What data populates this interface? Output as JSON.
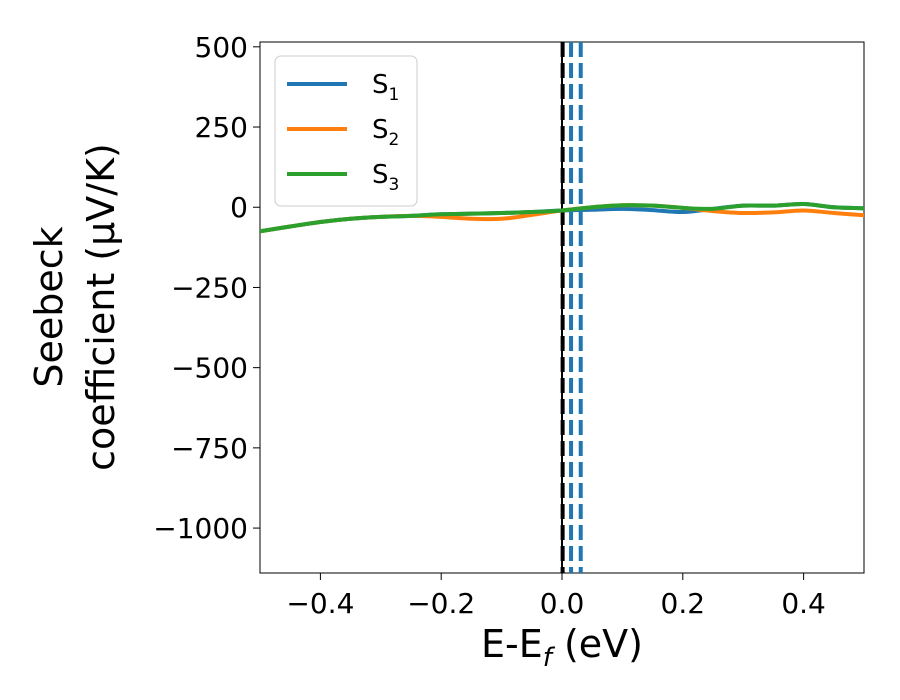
{
  "chart_data": {
    "type": "line",
    "xlabel": {
      "main": "E-E",
      "sub": "f",
      "tail": " (eV)"
    },
    "ylabel": {
      "line1": "Seebeck",
      "line2": "coefficient  (μV/K)"
    },
    "xlim": [
      -0.5,
      0.5
    ],
    "ylim": [
      -1140,
      515
    ],
    "xticks": [
      -0.4,
      -0.2,
      0.0,
      0.2,
      0.4
    ],
    "xtick_labels": [
      "−0.4",
      "−0.2",
      "0.0",
      "0.2",
      "0.4"
    ],
    "yticks": [
      500,
      250,
      0,
      -250,
      -500,
      -750,
      -1000
    ],
    "ytick_labels": [
      "500",
      "250",
      "0",
      "−250",
      "−500",
      "−750",
      "−1000"
    ],
    "grid": false,
    "legend_position": "top-left",
    "series": [
      {
        "name": "S",
        "sub": "1",
        "color": "#1f77b4",
        "x": [
          -0.5,
          -0.45,
          -0.4,
          -0.35,
          -0.3,
          -0.25,
          -0.2,
          -0.15,
          -0.1,
          -0.05,
          0.0,
          0.05,
          0.1,
          0.15,
          0.2,
          0.25,
          0.3,
          0.35,
          0.4,
          0.45,
          0.5
        ],
        "y": [
          -75,
          -60,
          -46,
          -36,
          -30,
          -27,
          -22,
          -20,
          -18,
          -15,
          -10,
          -8,
          -5,
          -9,
          -15,
          -5,
          5,
          5,
          10,
          0,
          -3
        ]
      },
      {
        "name": "S",
        "sub": "2",
        "color": "#ff7f0e",
        "x": [
          -0.5,
          -0.45,
          -0.4,
          -0.35,
          -0.3,
          -0.25,
          -0.2,
          -0.15,
          -0.1,
          -0.05,
          0.0,
          0.05,
          0.1,
          0.15,
          0.2,
          0.25,
          0.3,
          0.35,
          0.4,
          0.45,
          0.5
        ],
        "y": [
          -75,
          -60,
          -46,
          -36,
          -30,
          -27,
          -30,
          -36,
          -36,
          -24,
          -10,
          0,
          6,
          5,
          -2,
          -12,
          -18,
          -16,
          -10,
          -18,
          -25
        ]
      },
      {
        "name": "S",
        "sub": "3",
        "color": "#2ca02c",
        "x": [
          -0.5,
          -0.45,
          -0.4,
          -0.35,
          -0.3,
          -0.25,
          -0.2,
          -0.15,
          -0.1,
          -0.05,
          0.0,
          0.05,
          0.1,
          0.15,
          0.2,
          0.25,
          0.3,
          0.35,
          0.4,
          0.45,
          0.5
        ],
        "y": [
          -75,
          -60,
          -46,
          -36,
          -30,
          -27,
          -22,
          -20,
          -18,
          -15,
          -10,
          0,
          6,
          5,
          -2,
          -5,
          5,
          5,
          10,
          0,
          -3
        ]
      }
    ],
    "vlines": [
      {
        "x": 0.0,
        "color": "#000000",
        "style": "solid"
      },
      {
        "x": 0.001,
        "color": "#000000",
        "style": "dashed"
      },
      {
        "x": 0.015,
        "color": "#1f77b4",
        "style": "dashed"
      },
      {
        "x": 0.031,
        "color": "#1f77b4",
        "style": "dashed"
      }
    ]
  }
}
